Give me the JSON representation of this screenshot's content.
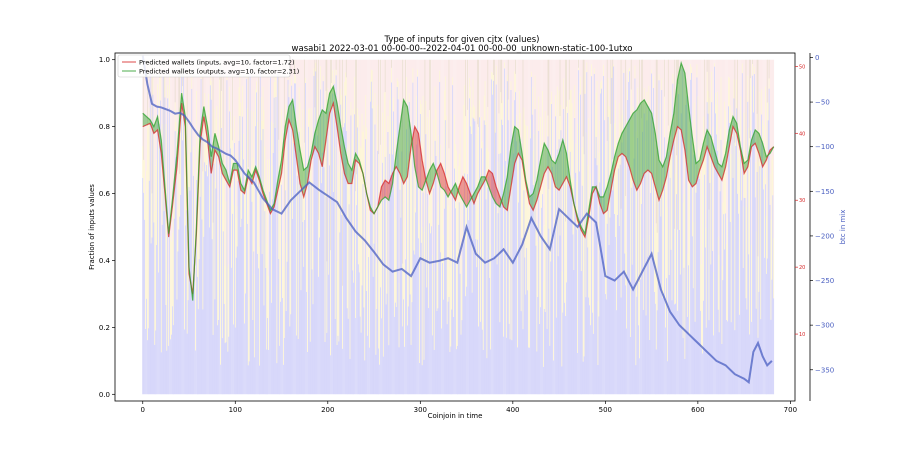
{
  "chart_data": {
    "type": "line",
    "title": "Type of inputs for given cjtx (values)",
    "subtitle": "wasabi1 2022-03-01 00-00-00--2022-04-01 00-00-00_unknown-static-100-1utxo",
    "xlabel": "Coinjoin in time",
    "ylabel": "Fraction of inputs values",
    "ylabel_right": "btc in mix",
    "xlim": [
      -30,
      705
    ],
    "ylim": [
      -0.02,
      1.02
    ],
    "ylim_right_red": [
      0,
      52
    ],
    "ylim_right_blue": [
      -385,
      5
    ],
    "xticks": [
      0,
      100,
      200,
      300,
      400,
      500,
      600,
      700
    ],
    "yticks": [
      0.0,
      0.2,
      0.4,
      0.6,
      0.8,
      1.0
    ],
    "yticks_right_red": [
      10,
      20,
      30,
      40,
      50
    ],
    "yticks_right_blue": [
      0,
      -50,
      -100,
      -150,
      -200,
      -250,
      -300,
      -350
    ],
    "legend_position": "top-left",
    "grid": false,
    "colors": {
      "inputs": "#d62728",
      "outputs": "#2ca02c",
      "btc_in_mix": "#4a5fc1",
      "bars_blue": "#8e8ef0",
      "bars_yellow": "#fbe9a6",
      "bars_pink": "#f6c9c9",
      "bars_brown": "#c9a886"
    },
    "series": [
      {
        "name": "Predicted wallets (inputs, avg=10, factor=1.72)",
        "axis": "left",
        "x": [
          0,
          8,
          12,
          16,
          20,
          24,
          28,
          32,
          37,
          42,
          46,
          50,
          54,
          58,
          62,
          66,
          70,
          74,
          78,
          82,
          86,
          90,
          94,
          98,
          102,
          106,
          110,
          114,
          118,
          122,
          126,
          130,
          134,
          138,
          142,
          146,
          150,
          154,
          158,
          162,
          166,
          170,
          174,
          178,
          182,
          186,
          190,
          194,
          198,
          202,
          206,
          210,
          214,
          218,
          222,
          226,
          230,
          234,
          238,
          242,
          246,
          250,
          254,
          258,
          262,
          266,
          270,
          274,
          278,
          282,
          286,
          290,
          294,
          298,
          302,
          306,
          310,
          314,
          318,
          322,
          326,
          330,
          334,
          338,
          342,
          346,
          350,
          354,
          358,
          362,
          366,
          370,
          374,
          378,
          382,
          386,
          390,
          394,
          398,
          402,
          406,
          410,
          414,
          418,
          422,
          426,
          430,
          434,
          438,
          442,
          446,
          450,
          454,
          458,
          462,
          466,
          470,
          474,
          478,
          482,
          486,
          490,
          494,
          498,
          502,
          506,
          510,
          514,
          518,
          522,
          526,
          530,
          534,
          538,
          542,
          546,
          550,
          554,
          558,
          562,
          566,
          570,
          574,
          578,
          582,
          586,
          590,
          594,
          598,
          602,
          606,
          610,
          614,
          618,
          622,
          626,
          630,
          634,
          638,
          642,
          646,
          650,
          654,
          658,
          662,
          666,
          670,
          674,
          678,
          682
        ],
        "values": [
          0.8,
          0.81,
          0.78,
          0.79,
          0.72,
          0.6,
          0.47,
          0.56,
          0.68,
          0.87,
          0.8,
          0.36,
          0.3,
          0.48,
          0.75,
          0.83,
          0.76,
          0.66,
          0.73,
          0.71,
          0.66,
          0.64,
          0.62,
          0.67,
          0.67,
          0.61,
          0.6,
          0.65,
          0.63,
          0.67,
          0.64,
          0.6,
          0.57,
          0.54,
          0.56,
          0.61,
          0.66,
          0.76,
          0.82,
          0.79,
          0.71,
          0.63,
          0.59,
          0.63,
          0.7,
          0.74,
          0.72,
          0.68,
          0.76,
          0.84,
          0.87,
          0.8,
          0.72,
          0.66,
          0.63,
          0.63,
          0.7,
          0.69,
          0.66,
          0.6,
          0.55,
          0.54,
          0.56,
          0.62,
          0.64,
          0.63,
          0.66,
          0.68,
          0.66,
          0.63,
          0.65,
          0.74,
          0.8,
          0.78,
          0.7,
          0.64,
          0.6,
          0.63,
          0.67,
          0.69,
          0.66,
          0.62,
          0.6,
          0.58,
          0.62,
          0.65,
          0.63,
          0.6,
          0.57,
          0.6,
          0.62,
          0.64,
          0.67,
          0.66,
          0.62,
          0.59,
          0.56,
          0.55,
          0.62,
          0.69,
          0.72,
          0.7,
          0.63,
          0.57,
          0.55,
          0.58,
          0.62,
          0.66,
          0.68,
          0.66,
          0.62,
          0.61,
          0.63,
          0.65,
          0.62,
          0.57,
          0.52,
          0.49,
          0.47,
          0.53,
          0.6,
          0.62,
          0.57,
          0.54,
          0.55,
          0.61,
          0.67,
          0.71,
          0.72,
          0.71,
          0.68,
          0.64,
          0.61,
          0.63,
          0.66,
          0.67,
          0.66,
          0.62,
          0.58,
          0.61,
          0.65,
          0.71,
          0.76,
          0.8,
          0.79,
          0.73,
          0.64,
          0.62,
          0.63,
          0.67,
          0.7,
          0.74,
          0.71,
          0.68,
          0.66,
          0.64,
          0.68,
          0.74,
          0.8,
          0.78,
          0.73,
          0.66,
          0.68,
          0.74,
          0.75,
          0.72,
          0.68,
          0.7,
          0.73,
          0.74
        ]
      },
      {
        "name": "Predicted wallets (outputs, avg=10, factor=2.31)",
        "axis": "left",
        "x": [
          0,
          8,
          12,
          16,
          20,
          24,
          28,
          32,
          37,
          42,
          46,
          50,
          54,
          58,
          62,
          66,
          70,
          74,
          78,
          82,
          86,
          90,
          94,
          98,
          102,
          106,
          110,
          114,
          118,
          122,
          126,
          130,
          134,
          138,
          142,
          146,
          150,
          154,
          158,
          162,
          166,
          170,
          174,
          178,
          182,
          186,
          190,
          194,
          198,
          202,
          206,
          210,
          214,
          218,
          222,
          226,
          230,
          234,
          238,
          242,
          246,
          250,
          254,
          258,
          262,
          266,
          270,
          274,
          278,
          282,
          286,
          290,
          294,
          298,
          302,
          306,
          310,
          314,
          318,
          322,
          326,
          330,
          334,
          338,
          342,
          346,
          350,
          354,
          358,
          362,
          366,
          370,
          374,
          378,
          382,
          386,
          390,
          394,
          398,
          402,
          406,
          410,
          414,
          418,
          422,
          426,
          430,
          434,
          438,
          442,
          446,
          450,
          454,
          458,
          462,
          466,
          470,
          474,
          478,
          482,
          486,
          490,
          494,
          498,
          502,
          506,
          510,
          514,
          518,
          522,
          526,
          530,
          534,
          538,
          542,
          546,
          550,
          554,
          558,
          562,
          566,
          570,
          574,
          578,
          582,
          586,
          590,
          594,
          598,
          602,
          606,
          610,
          614,
          618,
          622,
          626,
          630,
          634,
          638,
          642,
          646,
          650,
          654,
          658,
          662,
          666,
          670,
          674,
          678,
          682
        ],
        "values": [
          0.84,
          0.82,
          0.8,
          0.83,
          0.76,
          0.62,
          0.48,
          0.58,
          0.72,
          0.9,
          0.83,
          0.38,
          0.28,
          0.5,
          0.78,
          0.86,
          0.8,
          0.71,
          0.78,
          0.74,
          0.69,
          0.67,
          0.63,
          0.69,
          0.69,
          0.63,
          0.61,
          0.67,
          0.65,
          0.68,
          0.65,
          0.61,
          0.58,
          0.55,
          0.57,
          0.64,
          0.7,
          0.8,
          0.86,
          0.88,
          0.8,
          0.73,
          0.67,
          0.68,
          0.72,
          0.78,
          0.82,
          0.85,
          0.84,
          0.9,
          0.92,
          0.87,
          0.8,
          0.74,
          0.69,
          0.67,
          0.72,
          0.7,
          0.66,
          0.6,
          0.56,
          0.54,
          0.56,
          0.58,
          0.59,
          0.58,
          0.63,
          0.72,
          0.8,
          0.88,
          0.86,
          0.78,
          0.68,
          0.62,
          0.61,
          0.64,
          0.67,
          0.69,
          0.66,
          0.62,
          0.61,
          0.59,
          0.61,
          0.63,
          0.6,
          0.58,
          0.56,
          0.58,
          0.6,
          0.62,
          0.65,
          0.65,
          0.62,
          0.59,
          0.57,
          0.56,
          0.6,
          0.65,
          0.74,
          0.8,
          0.79,
          0.72,
          0.64,
          0.59,
          0.6,
          0.64,
          0.7,
          0.75,
          0.73,
          0.7,
          0.69,
          0.72,
          0.76,
          0.72,
          0.64,
          0.57,
          0.53,
          0.5,
          0.48,
          0.55,
          0.62,
          0.62,
          0.59,
          0.59,
          0.62,
          0.66,
          0.71,
          0.75,
          0.78,
          0.8,
          0.82,
          0.84,
          0.85,
          0.87,
          0.88,
          0.86,
          0.84,
          0.78,
          0.7,
          0.68,
          0.71,
          0.78,
          0.84,
          0.94,
          0.99,
          0.96,
          0.86,
          0.77,
          0.69,
          0.7,
          0.75,
          0.79,
          0.77,
          0.73,
          0.69,
          0.68,
          0.72,
          0.79,
          0.83,
          0.81,
          0.74,
          0.69,
          0.7,
          0.76,
          0.79,
          0.78,
          0.75,
          0.71,
          0.72,
          0.74
        ]
      },
      {
        "name": "btc in mix",
        "axis": "right",
        "x": [
          0,
          5,
          10,
          15,
          20,
          25,
          30,
          35,
          40,
          45,
          50,
          55,
          60,
          65,
          70,
          75,
          80,
          85,
          90,
          95,
          100,
          110,
          120,
          130,
          140,
          150,
          160,
          170,
          180,
          190,
          200,
          210,
          220,
          230,
          240,
          250,
          260,
          270,
          280,
          290,
          300,
          310,
          320,
          330,
          340,
          350,
          360,
          370,
          380,
          390,
          400,
          410,
          420,
          430,
          440,
          450,
          460,
          470,
          480,
          490,
          500,
          510,
          520,
          530,
          540,
          550,
          560,
          570,
          580,
          590,
          600,
          610,
          620,
          630,
          640,
          650,
          655,
          660,
          665,
          670,
          675,
          680
        ],
        "values": [
          2,
          -30,
          -52,
          -55,
          -56,
          -58,
          -60,
          -63,
          -62,
          -65,
          -72,
          -80,
          -87,
          -92,
          -95,
          -100,
          -102,
          -105,
          -108,
          -110,
          -115,
          -130,
          -140,
          -158,
          -170,
          -175,
          -160,
          -150,
          -140,
          -148,
          -155,
          -162,
          -180,
          -195,
          -205,
          -218,
          -232,
          -240,
          -237,
          -245,
          -225,
          -230,
          -228,
          -225,
          -230,
          -190,
          -220,
          -230,
          -225,
          -215,
          -230,
          -210,
          -180,
          -200,
          -215,
          -170,
          -180,
          -190,
          -175,
          -185,
          -245,
          -250,
          -240,
          -260,
          -240,
          -220,
          -260,
          -285,
          -300,
          -310,
          -320,
          -330,
          -340,
          -345,
          -355,
          -360,
          -364,
          -330,
          -320,
          -335,
          -345,
          -340
        ]
      }
    ]
  }
}
